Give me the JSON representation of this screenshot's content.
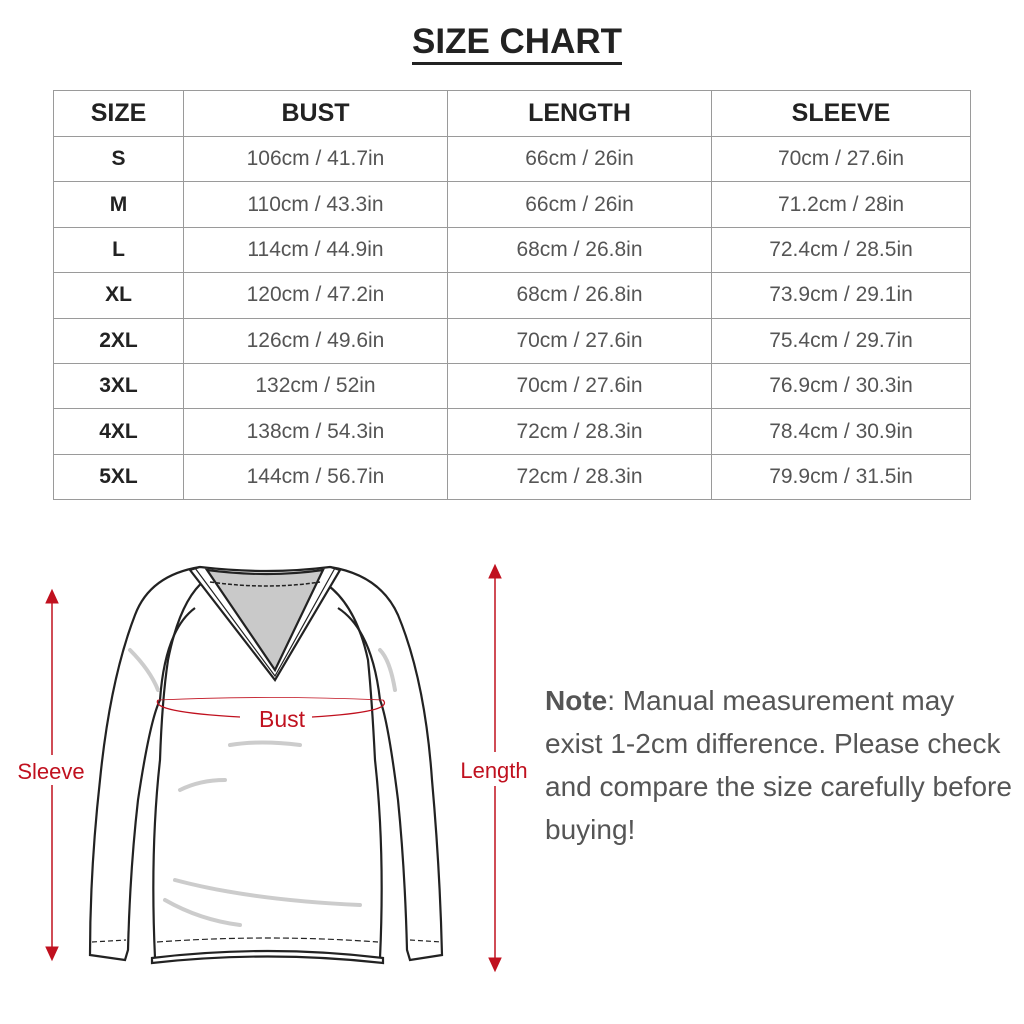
{
  "title": "SIZE CHART",
  "table": {
    "headers": [
      "SIZE",
      "BUST",
      "LENGTH",
      "SLEEVE"
    ],
    "rows": [
      [
        "S",
        "106cm / 41.7in",
        "66cm / 26in",
        "70cm / 27.6in"
      ],
      [
        "M",
        "110cm / 43.3in",
        "66cm / 26in",
        "71.2cm / 28in"
      ],
      [
        "L",
        "114cm / 44.9in",
        "68cm / 26.8in",
        "72.4cm / 28.5in"
      ],
      [
        "XL",
        "120cm / 47.2in",
        "68cm / 26.8in",
        "73.9cm / 29.1in"
      ],
      [
        "2XL",
        "126cm / 49.6in",
        "70cm / 27.6in",
        "75.4cm / 29.7in"
      ],
      [
        "3XL",
        "132cm / 52in",
        "70cm / 27.6in",
        "76.9cm / 30.3in"
      ],
      [
        "4XL",
        "138cm / 54.3in",
        "72cm / 28.3in",
        "78.4cm / 30.9in"
      ],
      [
        "5XL",
        "144cm / 56.7in",
        "72cm / 28.3in",
        "79.9cm / 31.5in"
      ]
    ]
  },
  "diagram": {
    "labels": {
      "bust": "Bust",
      "sleeve": "Sleeve",
      "length": "Length"
    },
    "accent_color": "#c0111f"
  },
  "note": {
    "label": "Note",
    "text": ": Manual measurement may exist 1-2cm difference. Please check and compare the size carefully before buying!"
  }
}
